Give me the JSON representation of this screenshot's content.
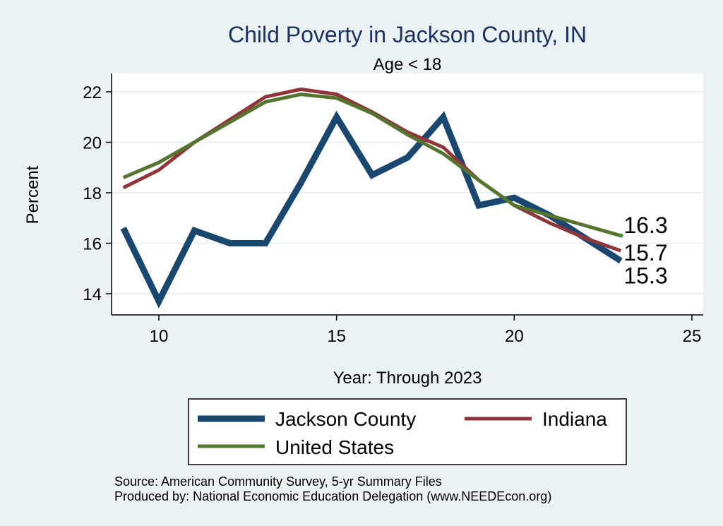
{
  "chart_data": {
    "type": "line",
    "title": "Child Poverty in Jackson County, IN",
    "subtitle": "Age < 18",
    "xlabel": "Year: Through 2023",
    "ylabel": "Percent",
    "xlim": [
      9,
      25
    ],
    "ylim": [
      13.2,
      22.5
    ],
    "xticks": [
      10,
      15,
      20,
      25
    ],
    "yticks": [
      14,
      16,
      18,
      20,
      22
    ],
    "grid": true,
    "legend_position": "bottom",
    "x": [
      9,
      10,
      11,
      12,
      13,
      14,
      15,
      16,
      17,
      18,
      19,
      20,
      21,
      22,
      23
    ],
    "series": [
      {
        "name": "Jackson County",
        "color": "#1a476f",
        "values": [
          16.6,
          13.7,
          16.5,
          16.0,
          16.0,
          18.4,
          21.0,
          18.7,
          19.4,
          21.0,
          17.5,
          17.8,
          17.1,
          16.2,
          15.3
        ],
        "end_label": "15.3"
      },
      {
        "name": "Indiana",
        "color": "#90353b",
        "values": [
          18.2,
          18.9,
          20.0,
          20.9,
          21.8,
          22.1,
          21.9,
          21.2,
          20.4,
          19.8,
          18.5,
          17.5,
          16.8,
          16.2,
          15.7
        ],
        "end_label": "15.7"
      },
      {
        "name": "United States",
        "color": "#55752f",
        "values": [
          18.6,
          19.2,
          20.0,
          20.8,
          21.6,
          21.9,
          21.75,
          21.15,
          20.3,
          19.55,
          18.5,
          17.5,
          17.1,
          16.7,
          16.3
        ],
        "end_label": "16.3"
      }
    ],
    "source_lines": [
      "Source: American Community Survey, 5-yr Summary Files",
      "Produced by: National Economic Education Delegation (www.NEEDEcon.org)"
    ]
  }
}
